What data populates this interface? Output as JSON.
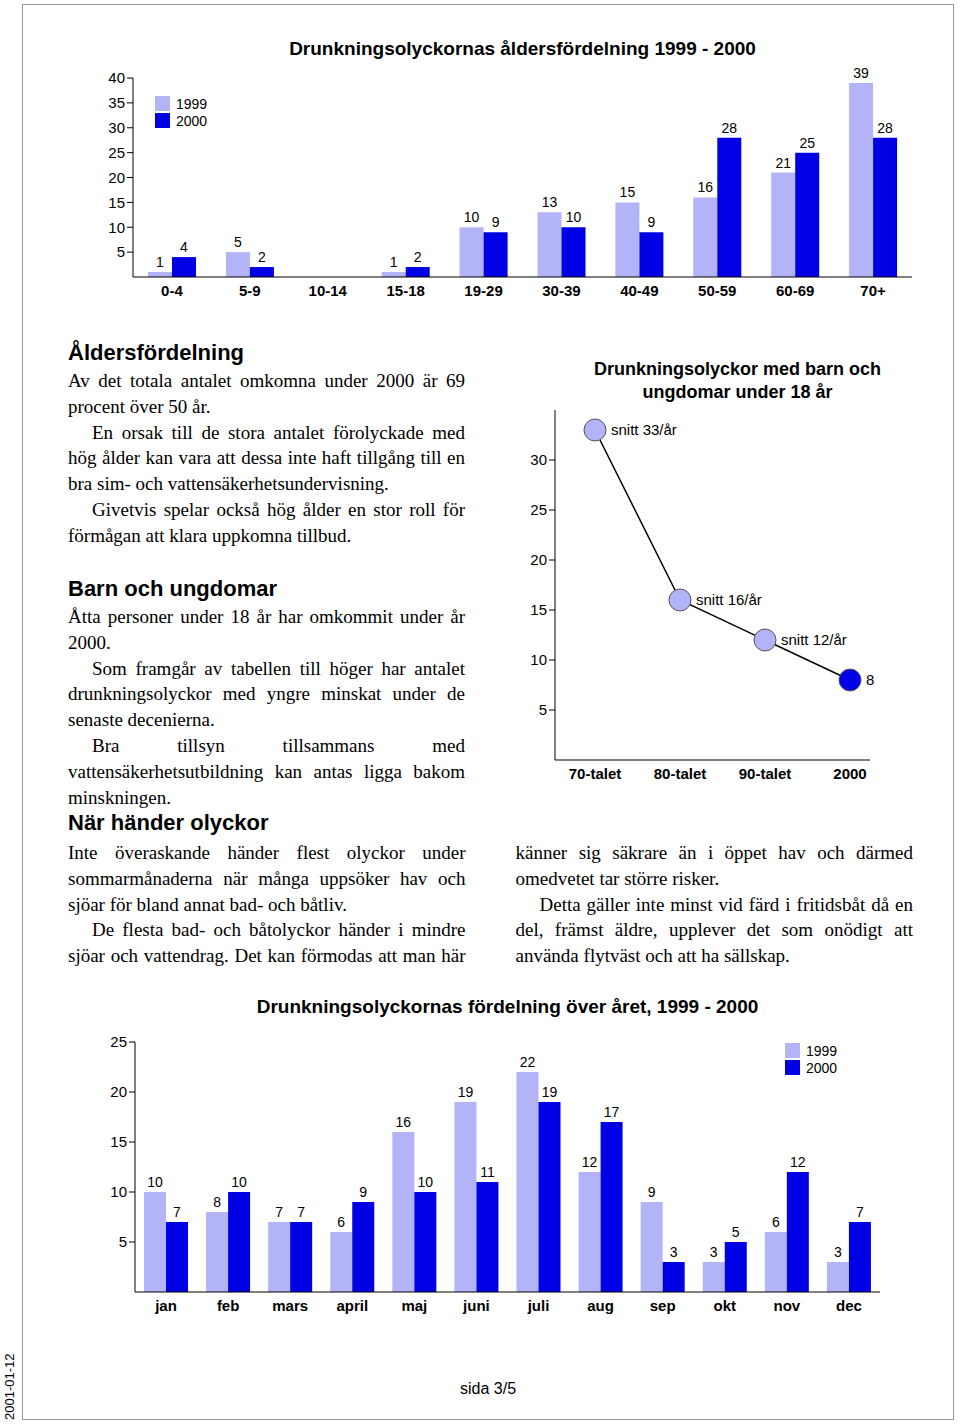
{
  "chart_data": [
    {
      "type": "bar",
      "title": "Drunkningsolyckornas åldersfördelning 1999 - 2000",
      "categories": [
        "0-4",
        "5-9",
        "10-14",
        "15-18",
        "19-29",
        "30-39",
        "40-49",
        "50-59",
        "60-69",
        "70+"
      ],
      "series": [
        {
          "name": "1999",
          "color": "#b3b3f7",
          "values": [
            1,
            5,
            0,
            1,
            10,
            13,
            15,
            16,
            21,
            39
          ]
        },
        {
          "name": "2000",
          "color": "#0000e5",
          "values": [
            4,
            2,
            0,
            2,
            9,
            10,
            9,
            28,
            25,
            28
          ]
        }
      ],
      "ylim": [
        0,
        40
      ],
      "yticks": [
        5,
        10,
        15,
        20,
        25,
        30,
        35,
        40
      ],
      "grid": false,
      "legend": "upper left",
      "data_labels": true
    },
    {
      "type": "line",
      "title": "Drunkningsolyckor med barn och ungdomar under 18 år",
      "categories": [
        "70-talet",
        "80-talet",
        "90-talet",
        "2000"
      ],
      "values": [
        33,
        16,
        12,
        8
      ],
      "value_labels": [
        "snitt 33/år",
        "snitt 16/år",
        "snitt 12/år",
        "8"
      ],
      "color": "#000000",
      "colors": [
        "#b3b3f7",
        "#b3b3f7",
        "#b3b3f7",
        "#0000e5"
      ],
      "marker": "circle",
      "ylim": [
        0,
        35
      ],
      "yticks": [
        5,
        10,
        15,
        20,
        25,
        30
      ],
      "grid": false,
      "data_labels": true
    },
    {
      "type": "bar",
      "title": "Drunkningsolyckornas fördelning över året, 1999 - 2000",
      "categories": [
        "jan",
        "feb",
        "mars",
        "april",
        "maj",
        "juni",
        "juli",
        "aug",
        "sep",
        "okt",
        "nov",
        "dec"
      ],
      "series": [
        {
          "name": "1999",
          "color": "#b3b3f7",
          "values": [
            10,
            8,
            7,
            6,
            16,
            19,
            22,
            12,
            9,
            3,
            6,
            3
          ]
        },
        {
          "name": "2000",
          "color": "#0000e5",
          "values": [
            7,
            10,
            7,
            9,
            10,
            11,
            19,
            17,
            3,
            5,
            12,
            7
          ]
        }
      ],
      "ylim": [
        0,
        25
      ],
      "yticks": [
        5,
        10,
        15,
        20,
        25
      ],
      "grid": false,
      "legend": "upper right",
      "data_labels": true
    }
  ],
  "sections": [
    {
      "heading": "Åldersfördelning",
      "paragraphs": [
        "Av det totala antalet omkomna under 2000 är 69 procent över 50 år.",
        "En orsak till de stora antalet förolyckade med hög ålder kan vara att dessa inte haft tillgång till en bra sim- och vattensäkerhetsundervisning.",
        "Givetvis spelar också hög ålder en stor roll för förmågan att klara uppkomna tillbud."
      ]
    },
    {
      "heading": "Barn och ungdomar",
      "paragraphs": [
        "Åtta personer under 18 år har omkommit under år 2000.",
        "Som framgår av tabellen till höger har antalet drunkningsolyckor med yngre minskat under de senaste decenierna.",
        "Bra tillsyn tillsammans med vattensäkerhetsutbildning kan antas ligga bakom minskningen."
      ]
    },
    {
      "heading": "När händer olyckor",
      "paragraphs": [
        "Inte överaskande händer flest olyckor under sommarmånaderna när många uppsöker hav och sjöar för bland annat bad- och båtliv.",
        "De flesta bad- och båtolyckor händer i mindre sjöar och vattendrag. Det kan förmodas att man här känner sig säkrare än i öppet hav och därmed omedvetet tar större risker.",
        "Detta gäller inte minst vid färd i fritidsbåt då en del, främst äldre, upplever det som onödigt att använda flytväst och att ha sällskap."
      ]
    }
  ],
  "footer": {
    "page": "sida 3/5",
    "date": "2001-01-12"
  }
}
